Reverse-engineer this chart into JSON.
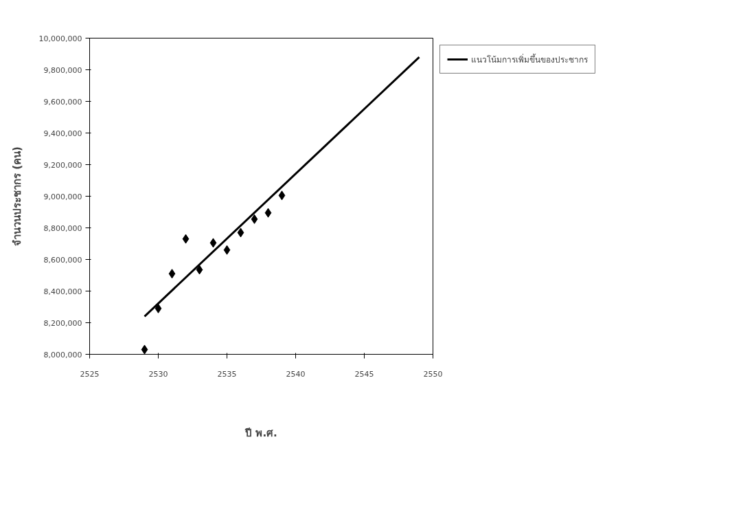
{
  "chart_data": {
    "type": "scatter",
    "xlabel": "ปี พ.ศ.",
    "ylabel": "จำนวนประชากร (คน)",
    "x": [
      2529,
      2530,
      2531,
      2532,
      2533,
      2534,
      2535,
      2536,
      2537,
      2538,
      2539
    ],
    "series": [
      {
        "type": "scatter",
        "color": "#000000",
        "marker": "diamond",
        "values": [
          8030000,
          8290000,
          8510000,
          8730000,
          8535000,
          8705000,
          8660000,
          8770000,
          8855000,
          8895000,
          9005000
        ]
      },
      {
        "type": "line",
        "name": "แนวโน้มการเพิ่มขึ้นของประชากร",
        "color": "#000000",
        "x": [
          2529,
          2549
        ],
        "values": [
          8240000,
          9880000
        ],
        "line_style": "solid"
      }
    ],
    "xlim": [
      2525,
      2550
    ],
    "xticks": [
      2525,
      2530,
      2535,
      2540,
      2545,
      2550
    ],
    "ylim": [
      8000000,
      10000000
    ],
    "yticks": [
      {
        "value": 8000000,
        "label": "8,000,000"
      },
      {
        "value": 8200000,
        "label": "8,200,000"
      },
      {
        "value": 8400000,
        "label": "8,400,000"
      },
      {
        "value": 8600000,
        "label": "8,600,000"
      },
      {
        "value": 8800000,
        "label": "8,800,000"
      },
      {
        "value": 9000000,
        "label": "9,000,000"
      },
      {
        "value": 9200000,
        "label": "9,200,000"
      },
      {
        "value": 9400000,
        "label": "9,400,000"
      },
      {
        "value": 9600000,
        "label": "9,600,000"
      },
      {
        "value": 9800000,
        "label": "9,800,000"
      },
      {
        "value": 10000000,
        "label": "10,000,000"
      }
    ],
    "grid": false,
    "legend": "right"
  }
}
